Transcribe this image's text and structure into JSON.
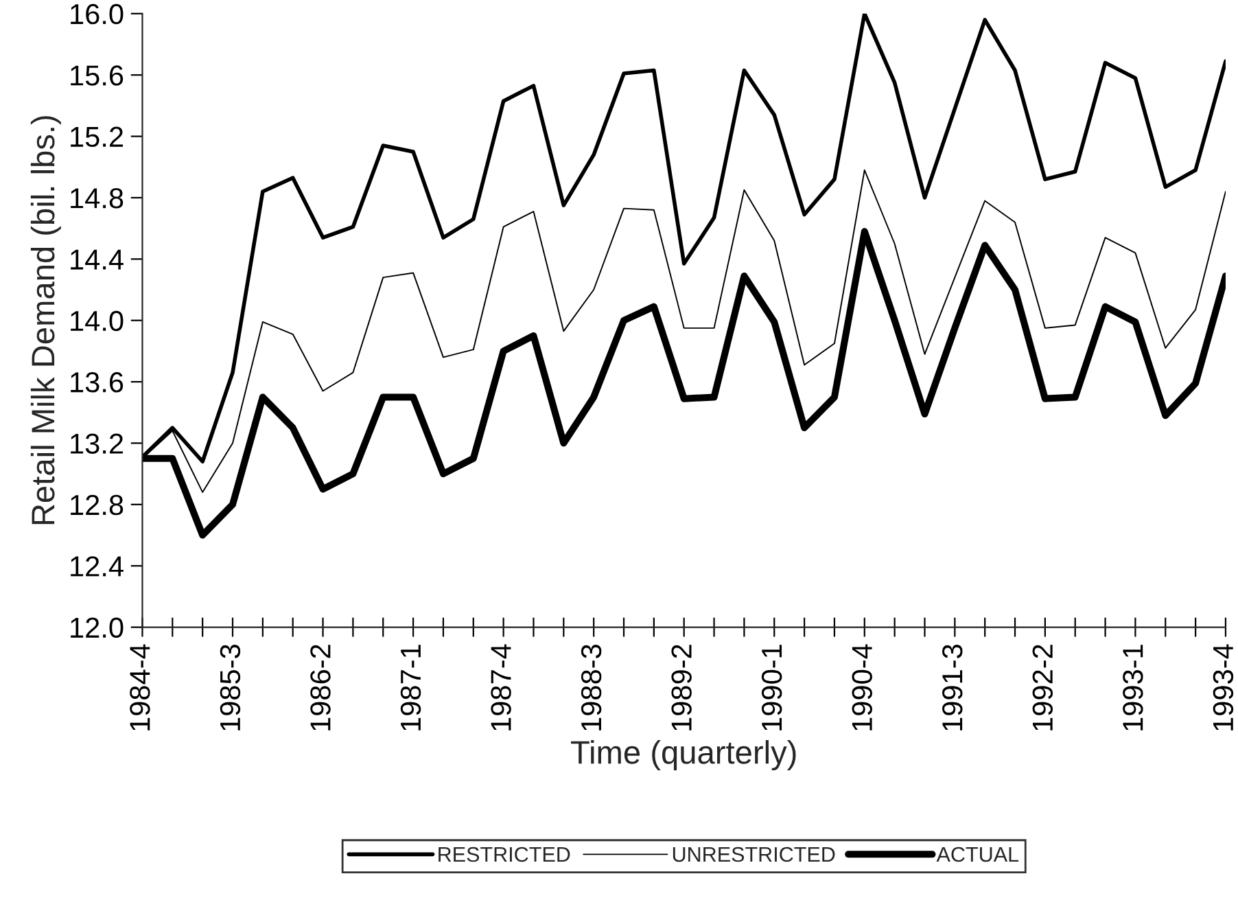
{
  "chart_data": {
    "type": "line",
    "xlabel": "Time (quarterly)",
    "ylabel": "Retail Milk Demand (bil. lbs.)",
    "categories": [
      "1984-4",
      null,
      null,
      "1985-3",
      null,
      null,
      "1986-2",
      null,
      null,
      "1987-1",
      null,
      null,
      "1987-4",
      null,
      null,
      "1988-3",
      null,
      null,
      "1989-2",
      null,
      null,
      "1990-1",
      null,
      null,
      "1990-4",
      null,
      null,
      "1991-3",
      null,
      null,
      "1992-2",
      null,
      null,
      "1993-1",
      null,
      null,
      "1993-4"
    ],
    "series": [
      {
        "name": "RESTRICTED",
        "color": "#000000",
        "values": [
          13.11,
          13.3,
          13.08,
          13.66,
          14.84,
          14.93,
          14.54,
          14.61,
          15.14,
          15.1,
          14.54,
          14.66,
          15.43,
          15.53,
          14.75,
          15.08,
          15.61,
          15.63,
          14.37,
          14.67,
          15.63,
          15.34,
          14.69,
          14.92,
          16.0,
          15.55,
          14.8,
          15.38,
          15.96,
          15.63,
          14.92,
          14.97,
          15.68,
          15.58,
          14.87,
          14.98,
          15.69
        ]
      },
      {
        "name": "UNRESTRICTED",
        "color": "#000000",
        "values": [
          13.1,
          13.28,
          12.88,
          13.2,
          13.99,
          13.91,
          13.54,
          13.66,
          14.28,
          14.31,
          13.76,
          13.81,
          14.61,
          14.71,
          13.93,
          14.2,
          14.73,
          14.72,
          13.95,
          13.95,
          14.85,
          14.52,
          13.71,
          13.85,
          14.98,
          14.5,
          13.78,
          14.28,
          14.78,
          14.64,
          13.95,
          13.97,
          14.54,
          14.44,
          13.82,
          14.07,
          14.84
        ]
      },
      {
        "name": "ACTUAL",
        "color": "#000000",
        "values": [
          13.1,
          13.1,
          12.6,
          12.8,
          13.5,
          13.3,
          12.9,
          13.0,
          13.5,
          13.5,
          13.0,
          13.1,
          13.8,
          13.9,
          13.2,
          13.5,
          14.0,
          14.09,
          13.49,
          13.5,
          14.29,
          13.99,
          13.3,
          13.5,
          14.58,
          14.0,
          13.39,
          13.95,
          14.49,
          14.2,
          13.49,
          13.5,
          14.09,
          13.99,
          13.38,
          13.59,
          14.29
        ]
      }
    ],
    "ylim": [
      12.0,
      16.0
    ],
    "yticks": [
      {
        "value": 12.0,
        "label": "12.0"
      },
      {
        "value": 12.4,
        "label": "12.4"
      },
      {
        "value": 12.8,
        "label": "12.8"
      },
      {
        "value": 13.2,
        "label": "13.2"
      },
      {
        "value": 13.6,
        "label": "13.6"
      },
      {
        "value": 14.0,
        "label": "14.0"
      },
      {
        "value": 14.4,
        "label": "14.4"
      },
      {
        "value": 14.8,
        "label": "14.8"
      },
      {
        "value": 15.2,
        "label": "15.2"
      },
      {
        "value": 15.6,
        "label": "15.6"
      },
      {
        "value": 16.0,
        "label": "16.0"
      }
    ],
    "grid": false,
    "legend": "bottom",
    "marker": "none",
    "line_style": "solid"
  }
}
